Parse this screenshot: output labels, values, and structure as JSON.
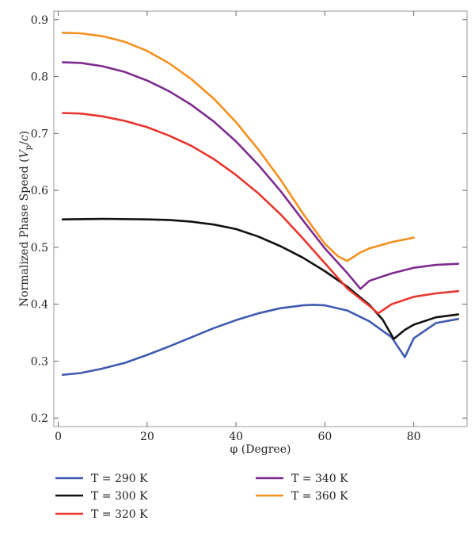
{
  "chart_data": {
    "type": "line",
    "title": "",
    "xlabel": "φ (Degree)",
    "ylabel": "Normalized Phase Speed (Vp/c)",
    "ylabel_parts": {
      "pre": "Normalized Phase Speed (",
      "var": "V",
      "sub": "p",
      "slash": "/",
      "var2": "c",
      "post": ")"
    },
    "xlim": [
      -1,
      92
    ],
    "ylim": [
      0.185,
      0.915
    ],
    "xticks": [
      0,
      20,
      40,
      60,
      80
    ],
    "yticks": [
      0.2,
      0.3,
      0.4,
      0.5,
      0.6,
      0.7,
      0.8,
      0.9
    ],
    "grid": false,
    "legend_position": "bottom",
    "series": [
      {
        "name": "T = 290 K",
        "color": "#3f5bb0",
        "x": [
          1,
          5,
          10,
          15,
          20,
          25,
          30,
          35,
          40,
          45,
          50,
          55,
          57.5,
          60,
          65,
          70,
          75,
          78,
          80,
          85,
          90
        ],
        "y": [
          0.276,
          0.279,
          0.287,
          0.297,
          0.311,
          0.326,
          0.342,
          0.358,
          0.372,
          0.384,
          0.393,
          0.398,
          0.399,
          0.398,
          0.389,
          0.37,
          0.342,
          0.307,
          0.34,
          0.367,
          0.374
        ]
      },
      {
        "name": "T = 300 K",
        "color": "#111111",
        "x": [
          1,
          10,
          20,
          25,
          30,
          35,
          40,
          45,
          50,
          55,
          60,
          65,
          70,
          73,
          75.5,
          78,
          80,
          85,
          90
        ],
        "y": [
          0.549,
          0.55,
          0.549,
          0.548,
          0.545,
          0.54,
          0.532,
          0.519,
          0.502,
          0.482,
          0.458,
          0.431,
          0.399,
          0.373,
          0.339,
          0.355,
          0.364,
          0.377,
          0.382
        ]
      },
      {
        "name": "T = 320 K",
        "color": "#e8352e",
        "x": [
          1,
          5,
          10,
          15,
          20,
          25,
          30,
          35,
          40,
          45,
          50,
          55,
          60,
          65,
          70,
          72,
          75,
          80,
          85,
          90
        ],
        "y": [
          0.736,
          0.735,
          0.73,
          0.722,
          0.711,
          0.696,
          0.678,
          0.655,
          0.627,
          0.595,
          0.558,
          0.516,
          0.472,
          0.428,
          0.397,
          0.384,
          0.4,
          0.413,
          0.419,
          0.423
        ]
      },
      {
        "name": "T = 340 K",
        "color": "#7e2b8f",
        "x": [
          1,
          5,
          10,
          15,
          20,
          25,
          30,
          35,
          40,
          45,
          50,
          55,
          60,
          65,
          68,
          70,
          75,
          80,
          85,
          90
        ],
        "y": [
          0.825,
          0.824,
          0.818,
          0.808,
          0.793,
          0.774,
          0.75,
          0.721,
          0.686,
          0.645,
          0.599,
          0.548,
          0.498,
          0.455,
          0.427,
          0.441,
          0.454,
          0.464,
          0.469,
          0.471
        ]
      },
      {
        "name": "T = 360 K",
        "color": "#f5901f",
        "x": [
          1,
          5,
          10,
          15,
          20,
          25,
          30,
          35,
          40,
          45,
          50,
          55,
          60,
          63,
          65,
          68,
          70,
          75,
          80
        ],
        "y": [
          0.877,
          0.876,
          0.871,
          0.861,
          0.845,
          0.823,
          0.795,
          0.761,
          0.72,
          0.672,
          0.619,
          0.56,
          0.506,
          0.484,
          0.476,
          0.491,
          0.498,
          0.509,
          0.517
        ]
      }
    ]
  }
}
